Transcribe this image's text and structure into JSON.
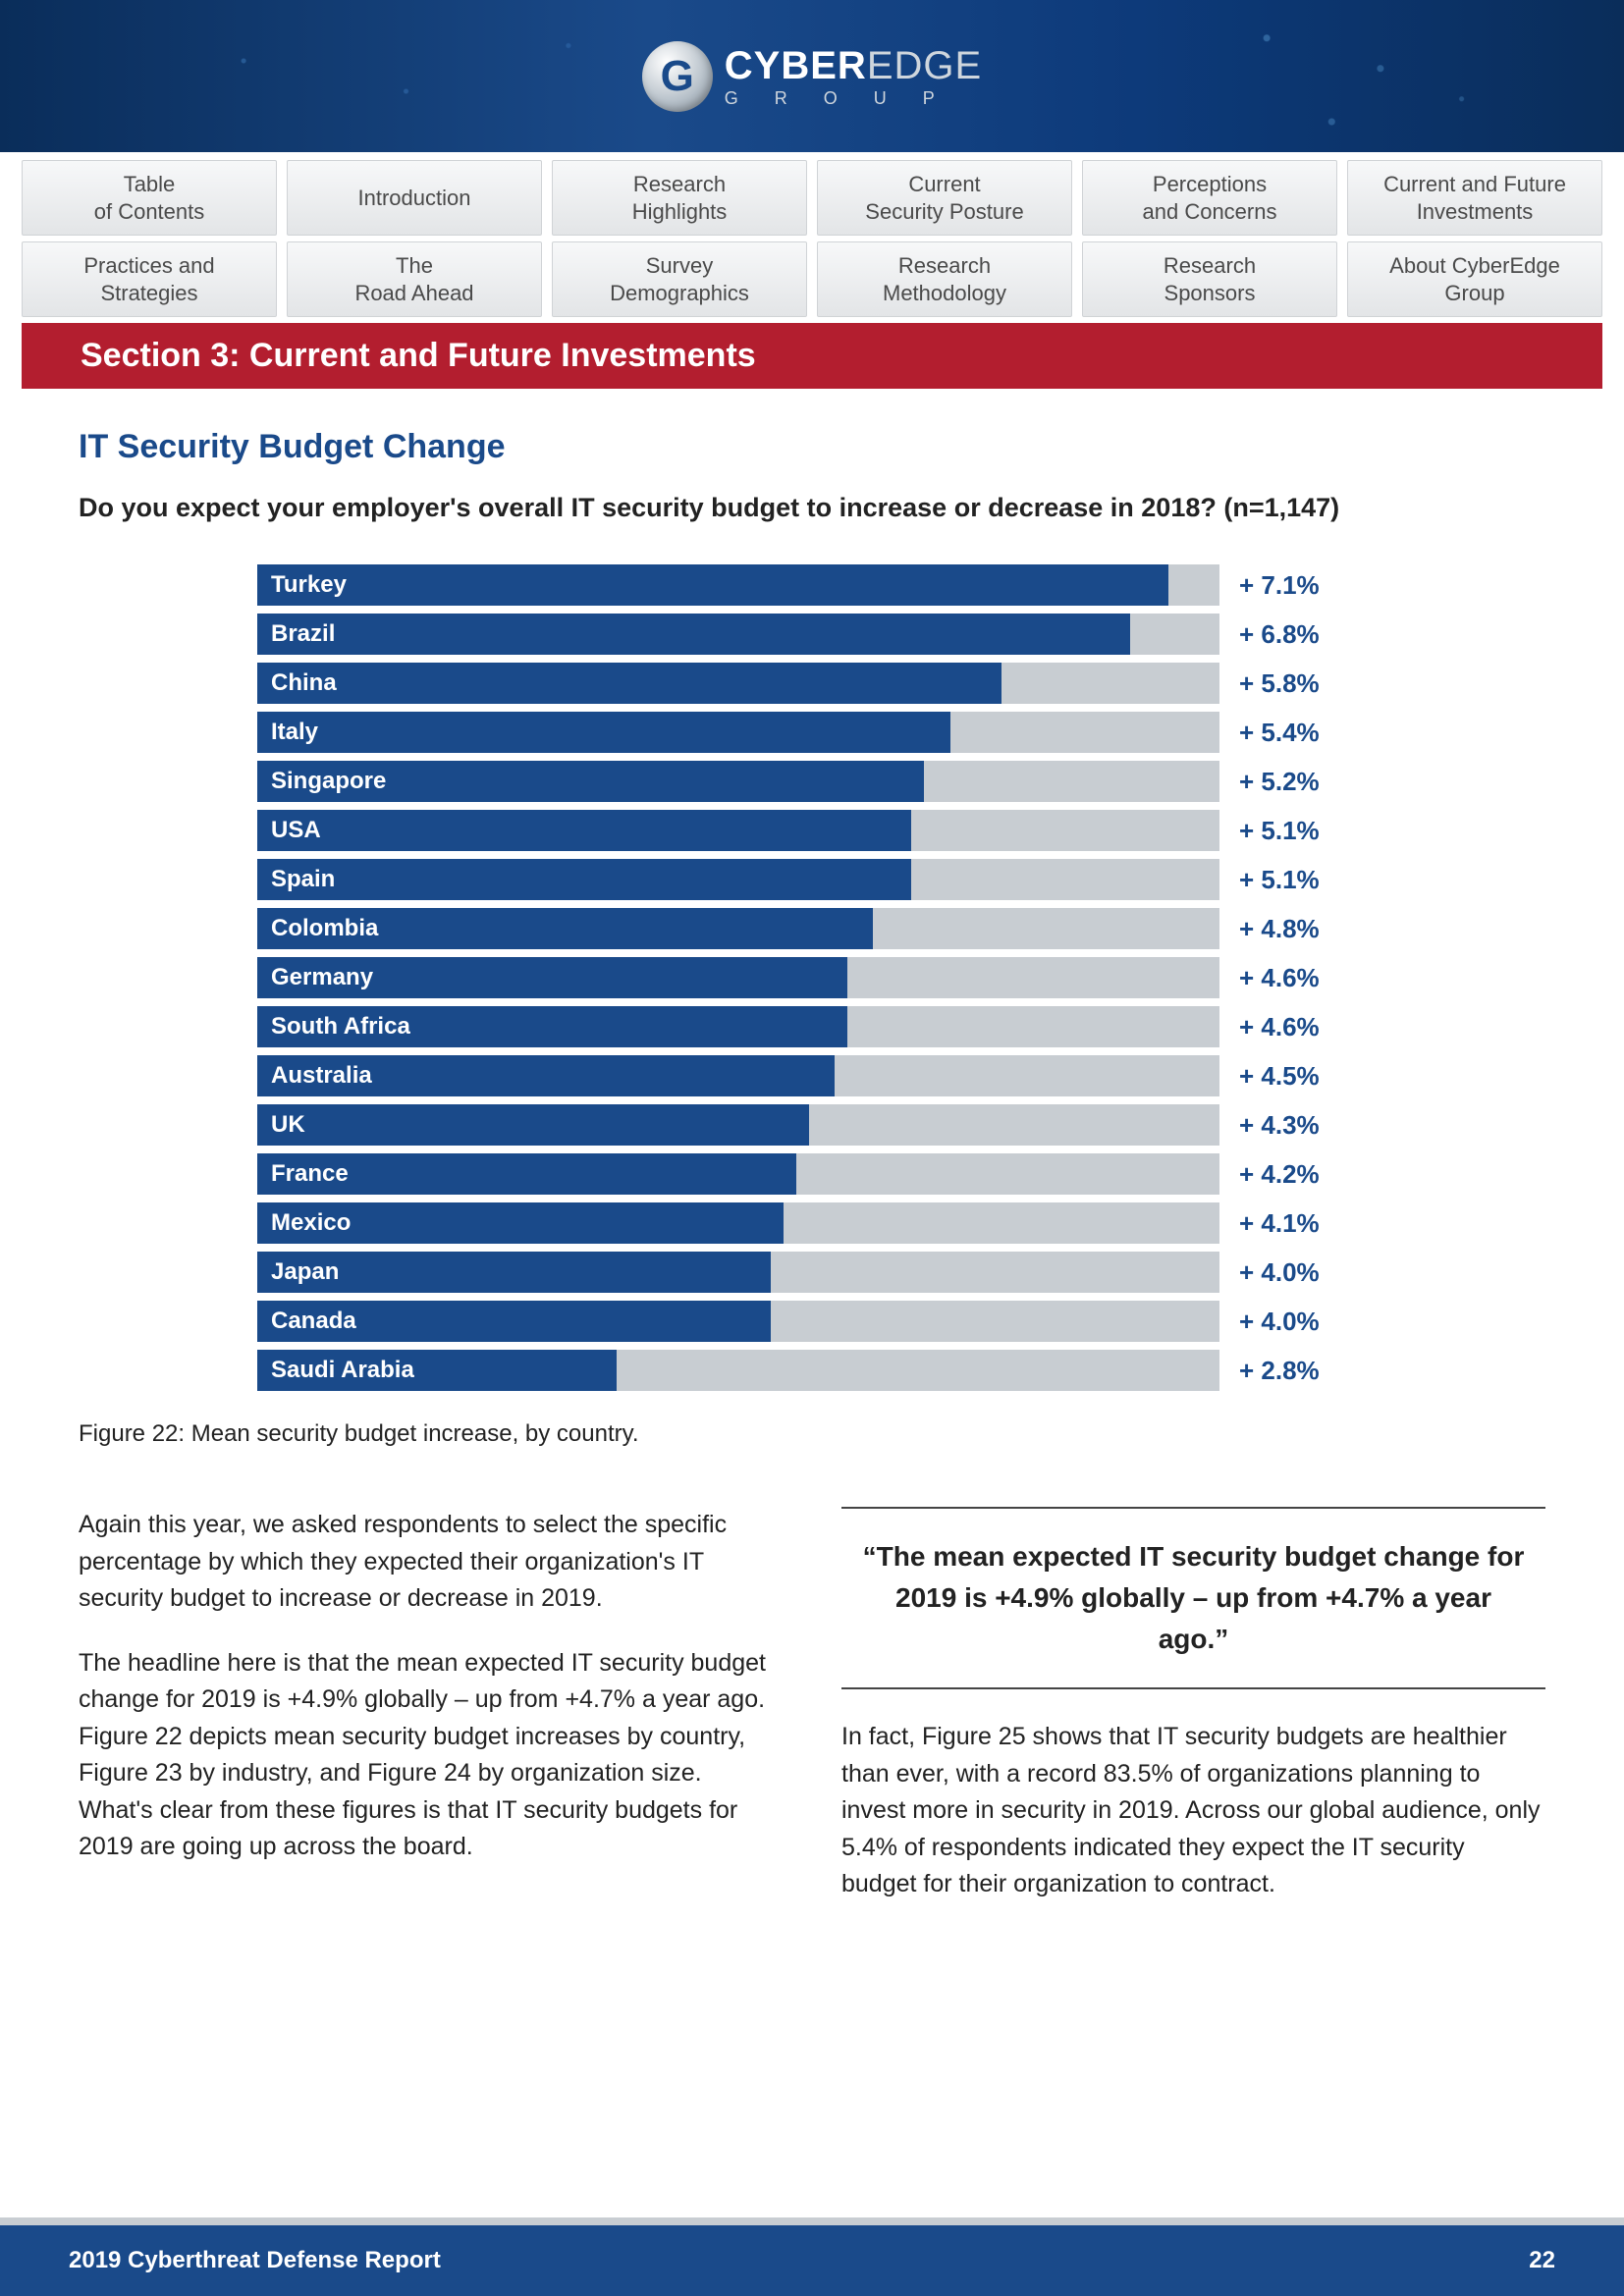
{
  "logo": {
    "mark_letter": "G",
    "name_bold": "CYBER",
    "name_light": "EDGE",
    "sub": "G R O U P"
  },
  "nav": {
    "row1": [
      "Table\nof Contents",
      "Introduction",
      "Research\nHighlights",
      "Current\nSecurity Posture",
      "Perceptions\nand Concerns",
      "Current and Future\nInvestments"
    ],
    "row2": [
      "Practices and\nStrategies",
      "The\nRoad Ahead",
      "Survey\nDemographics",
      "Research\nMethodology",
      "Research\nSponsors",
      "About CyberEdge\nGroup"
    ]
  },
  "section_bar": "Section 3: Current and Future Investments",
  "sub_title": "IT Security Budget Change",
  "question": "Do you expect your employer's overall IT security budget to increase or decrease in 2018? (n=1,147)",
  "chart": {
    "type": "bar",
    "bar_color": "#1a4a8a",
    "track_color": "#c8cdd2",
    "value_color": "#1a4a8a",
    "label_color": "#ffffff",
    "label_fontsize": 24,
    "value_fontsize": 26,
    "max": 7.5,
    "items": [
      {
        "label": "Turkey",
        "value": 7.1,
        "display": "+ 7.1%"
      },
      {
        "label": "Brazil",
        "value": 6.8,
        "display": "+ 6.8%"
      },
      {
        "label": "China",
        "value": 5.8,
        "display": "+ 5.8%"
      },
      {
        "label": "Italy",
        "value": 5.4,
        "display": "+ 5.4%"
      },
      {
        "label": "Singapore",
        "value": 5.2,
        "display": "+ 5.2%"
      },
      {
        "label": "USA",
        "value": 5.1,
        "display": "+ 5.1%"
      },
      {
        "label": "Spain",
        "value": 5.1,
        "display": "+ 5.1%"
      },
      {
        "label": "Colombia",
        "value": 4.8,
        "display": "+ 4.8%"
      },
      {
        "label": "Germany",
        "value": 4.6,
        "display": "+ 4.6%"
      },
      {
        "label": "South Africa",
        "value": 4.6,
        "display": "+ 4.6%"
      },
      {
        "label": "Australia",
        "value": 4.5,
        "display": "+ 4.5%"
      },
      {
        "label": "UK",
        "value": 4.3,
        "display": "+ 4.3%"
      },
      {
        "label": "France",
        "value": 4.2,
        "display": "+ 4.2%"
      },
      {
        "label": "Mexico",
        "value": 4.1,
        "display": "+ 4.1%"
      },
      {
        "label": "Japan",
        "value": 4.0,
        "display": "+ 4.0%"
      },
      {
        "label": "Canada",
        "value": 4.0,
        "display": "+ 4.0%"
      },
      {
        "label": "Saudi Arabia",
        "value": 2.8,
        "display": "+ 2.8%"
      }
    ]
  },
  "figure_caption": "Figure 22: Mean security budget increase, by country.",
  "body": {
    "left_p1": "Again this year, we asked respondents to select the specific percentage by which they expected their organization's IT security budget to increase or decrease in 2019.",
    "left_p2": "The headline here is that the mean expected IT security budget change for 2019 is +4.9% globally – up from +4.7% a year ago. Figure 22 depicts mean security budget increases by country, Figure 23 by industry, and Figure 24 by organization size. What's clear from these figures is that IT security budgets for 2019 are going up across the board.",
    "quote": "“The mean expected IT security budget change for 2019 is +4.9% globally – up from +4.7% a year ago.”",
    "right_p1": "In fact, Figure 25 shows that IT security budgets are healthier than ever, with a record 83.5% of organizations planning to invest more in security in 2019. Across our global audience, only 5.4% of respondents indicated they expect the IT security budget for their organization to contract."
  },
  "footer": {
    "title": "2019 Cyberthreat Defense Report",
    "page": "22"
  }
}
